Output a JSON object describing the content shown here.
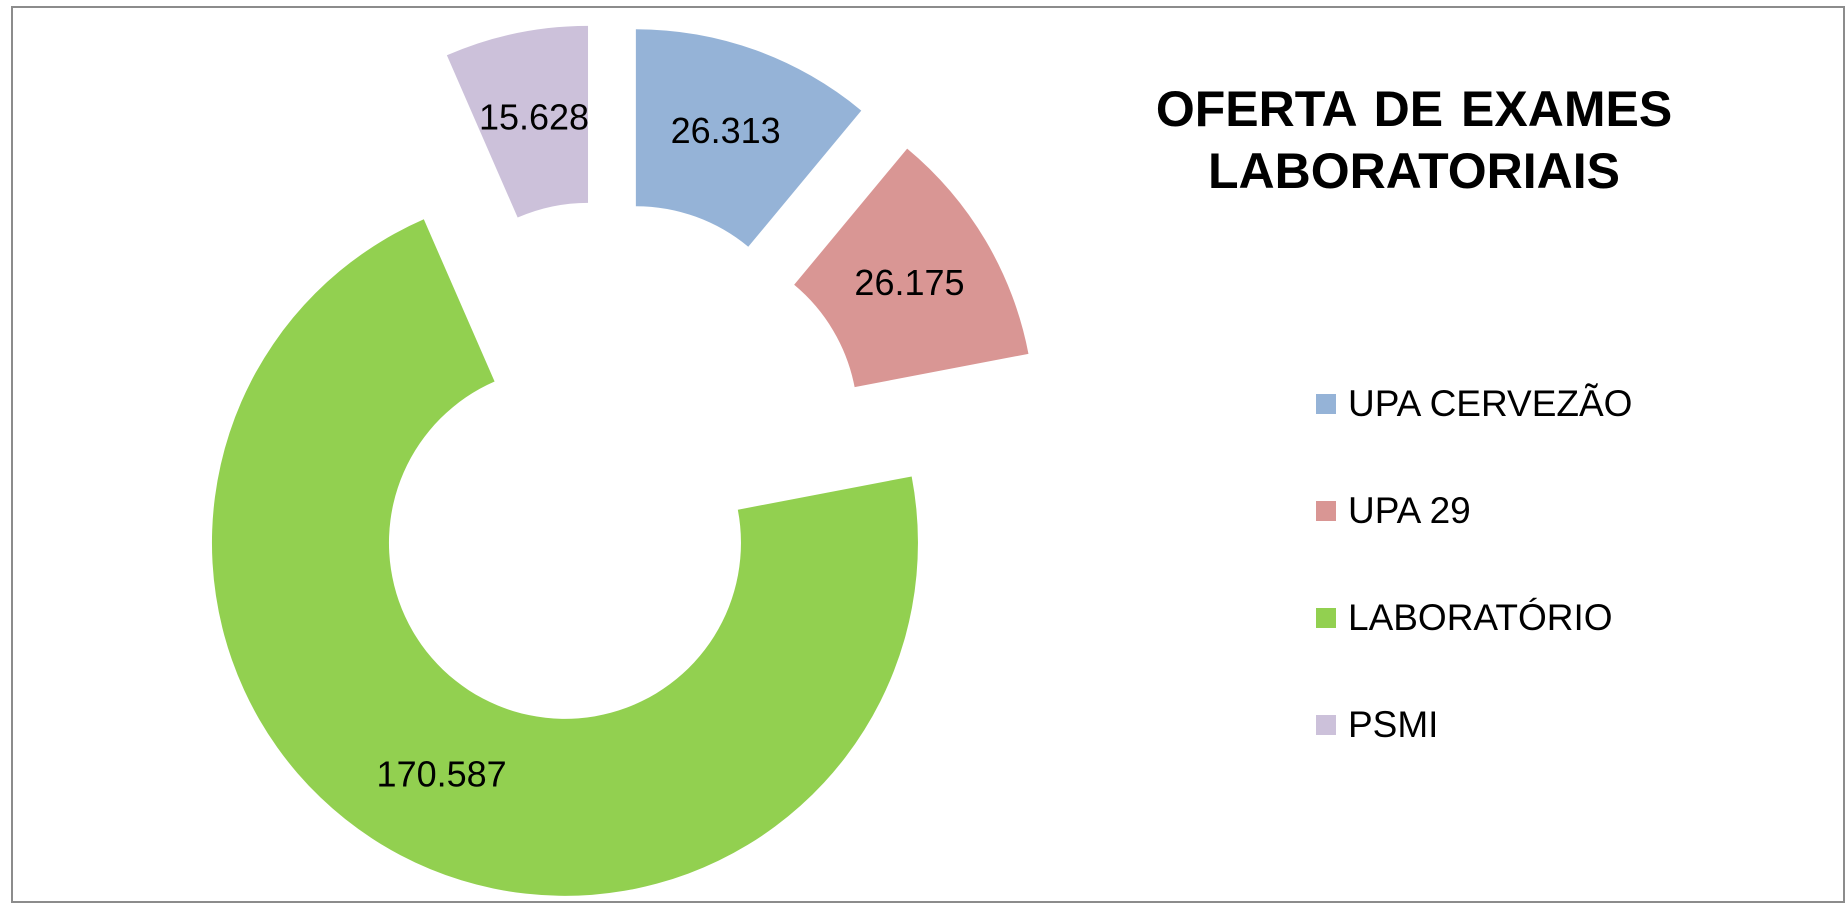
{
  "chart_data": {
    "type": "donut",
    "title": "OFERTA DE EXAMES LABORATORIAIS",
    "categories": [
      "UPA CERVEZÃO",
      "UPA 29",
      "LABORATÓRIO",
      "PSMI"
    ],
    "values": [
      26313,
      26175,
      170587,
      15628
    ],
    "value_labels": [
      "26.313",
      "26.175",
      "170.587",
      "15.628"
    ],
    "colors": [
      "#95b3d7",
      "#d99694",
      "#92d050",
      "#ccc1da"
    ],
    "legend": "right"
  }
}
